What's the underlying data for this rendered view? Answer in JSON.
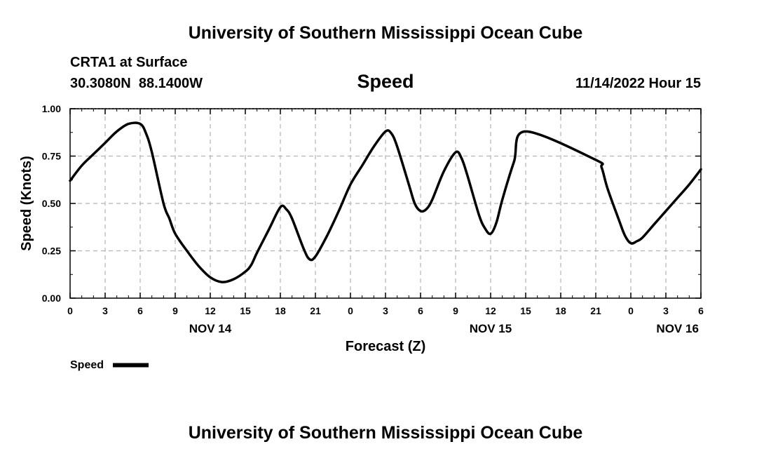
{
  "header": {
    "title": "University of Southern Mississippi Ocean Cube",
    "station": "CRTA1 at Surface",
    "coords": "30.3080N  88.1400W",
    "variable": "Speed",
    "datetime": "11/14/2022 Hour 15",
    "footer_title": "University of Southern Mississippi Ocean Cube"
  },
  "chart_data": {
    "type": "line",
    "xlabel": "Forecast (Z)",
    "ylabel": "Speed (Knots)",
    "x_unit": "forecast hour",
    "xlim": [
      0,
      54
    ],
    "ylim": [
      0,
      1
    ],
    "x_ticks": [
      {
        "x": 0,
        "label": "0"
      },
      {
        "x": 3,
        "label": "3"
      },
      {
        "x": 6,
        "label": "6"
      },
      {
        "x": 9,
        "label": "9"
      },
      {
        "x": 12,
        "label": "12"
      },
      {
        "x": 15,
        "label": "15"
      },
      {
        "x": 18,
        "label": "18"
      },
      {
        "x": 21,
        "label": "21"
      },
      {
        "x": 24,
        "label": "0"
      },
      {
        "x": 27,
        "label": "3"
      },
      {
        "x": 30,
        "label": "6"
      },
      {
        "x": 33,
        "label": "9"
      },
      {
        "x": 36,
        "label": "12"
      },
      {
        "x": 39,
        "label": "15"
      },
      {
        "x": 42,
        "label": "18"
      },
      {
        "x": 45,
        "label": "21"
      },
      {
        "x": 48,
        "label": "0"
      },
      {
        "x": 51,
        "label": "3"
      },
      {
        "x": 54,
        "label": "6"
      }
    ],
    "day_labels": [
      {
        "x": 12,
        "label": "NOV 14"
      },
      {
        "x": 36,
        "label": "NOV 15"
      },
      {
        "x": 52,
        "label": "NOV 16"
      }
    ],
    "y_ticks": [
      {
        "y": 0,
        "label": "0.00"
      },
      {
        "y": 0.25,
        "label": "0.25"
      },
      {
        "y": 0.5,
        "label": "0.50"
      },
      {
        "y": 0.75,
        "label": "0.75"
      },
      {
        "y": 1,
        "label": "1.00"
      }
    ],
    "grid": true,
    "legend": {
      "placement": "bottom-left",
      "label": "Speed"
    },
    "series": [
      {
        "name": "Speed",
        "color": "#000000",
        "x": [
          0,
          1,
          2,
          3,
          4,
          5,
          6,
          6.5,
          7,
          8,
          8.5,
          9,
          10,
          11,
          12,
          13,
          14,
          15,
          15.5,
          16,
          17,
          18,
          18.5,
          19,
          20,
          20.5,
          21,
          22,
          23,
          24,
          25,
          26,
          27,
          27.5,
          28,
          29,
          29.5,
          30,
          30.5,
          31,
          32,
          33,
          33.5,
          34,
          35,
          35.5,
          36,
          36.5,
          37,
          38,
          39,
          45,
          45.5,
          46,
          47,
          47.5,
          48,
          48.5,
          49,
          50,
          51,
          52,
          53,
          54
        ],
        "y": [
          0.62,
          0.7,
          0.76,
          0.82,
          0.88,
          0.92,
          0.92,
          0.87,
          0.77,
          0.5,
          0.42,
          0.34,
          0.25,
          0.17,
          0.11,
          0.085,
          0.1,
          0.14,
          0.175,
          0.24,
          0.36,
          0.48,
          0.47,
          0.42,
          0.26,
          0.205,
          0.22,
          0.33,
          0.46,
          0.6,
          0.7,
          0.8,
          0.88,
          0.87,
          0.8,
          0.6,
          0.5,
          0.46,
          0.47,
          0.52,
          0.67,
          0.77,
          0.74,
          0.65,
          0.44,
          0.37,
          0.34,
          0.4,
          0.52,
          0.72,
          0.88,
          0.73,
          0.69,
          0.58,
          0.41,
          0.33,
          0.29,
          0.3,
          0.32,
          0.39,
          0.46,
          0.53,
          0.6,
          0.68
        ]
      }
    ]
  }
}
